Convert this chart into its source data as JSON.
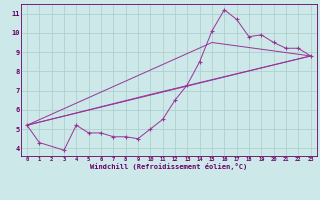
{
  "bg_color": "#cce8e8",
  "grid_color": "#aacccc",
  "line_color": "#993399",
  "xlabel": "Windchill (Refroidissement éolien,°C)",
  "ylim": [
    3.6,
    11.5
  ],
  "xlim": [
    -0.5,
    23.5
  ],
  "yticks": [
    4,
    5,
    6,
    7,
    8,
    9,
    10,
    11
  ],
  "xticks": [
    0,
    1,
    2,
    3,
    4,
    5,
    6,
    7,
    8,
    9,
    10,
    11,
    12,
    13,
    14,
    15,
    16,
    17,
    18,
    19,
    20,
    21,
    22,
    23
  ],
  "series1_x": [
    0,
    1,
    3,
    4,
    5,
    6,
    7,
    8,
    9,
    10,
    11,
    12,
    13,
    14,
    15,
    16,
    17,
    18,
    19,
    20,
    21,
    22,
    23
  ],
  "series1_y": [
    5.2,
    4.3,
    3.9,
    5.2,
    4.8,
    4.8,
    4.6,
    4.6,
    4.5,
    5.0,
    5.5,
    6.5,
    7.3,
    8.5,
    10.1,
    11.2,
    10.7,
    9.8,
    9.9,
    9.5,
    9.2,
    9.2,
    8.8
  ],
  "series2_x": [
    0,
    23
  ],
  "series2_y": [
    5.2,
    8.8
  ],
  "series3_x": [
    0,
    10,
    23
  ],
  "series3_y": [
    5.2,
    6.8,
    8.8
  ],
  "series4_x": [
    0,
    15,
    23
  ],
  "series4_y": [
    5.2,
    9.5,
    8.8
  ],
  "label_color": "#660066",
  "spine_color": "#660066"
}
